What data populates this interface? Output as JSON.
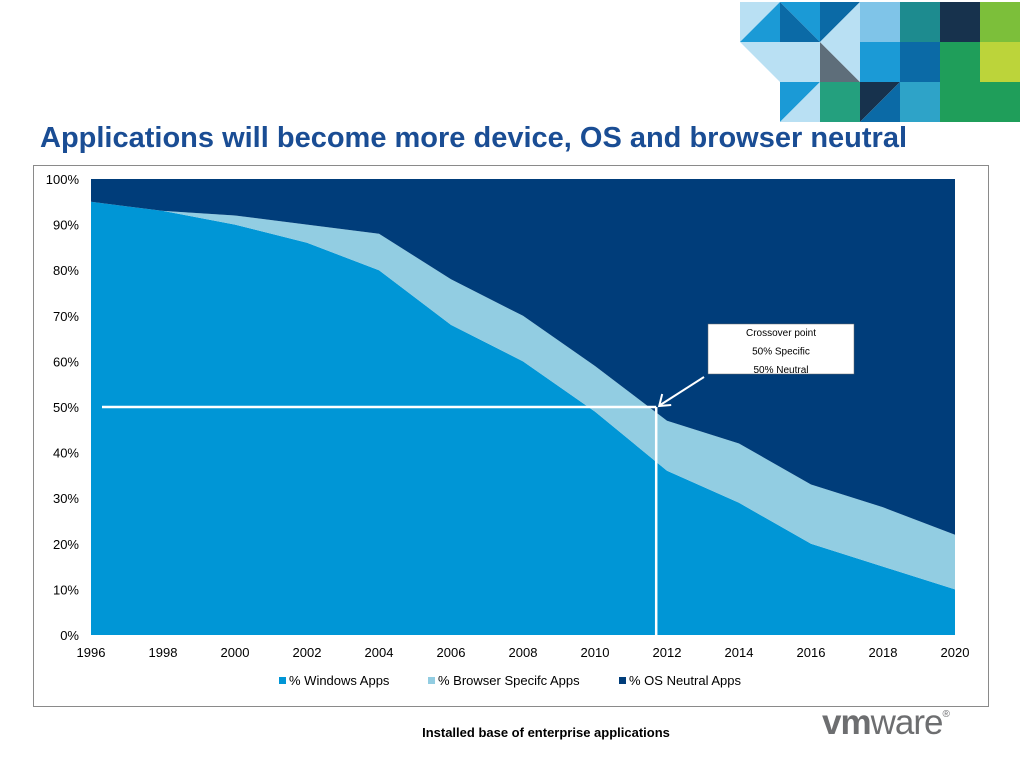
{
  "slide": {
    "title": "Applications will become more device, OS and browser neutral",
    "caption": "Installed base of enterprise applications"
  },
  "logo": {
    "text_bold": "vm",
    "text_rest": "ware",
    "mark": "®"
  },
  "annotation": {
    "lines": [
      "Crossover point",
      "50% Specific",
      "50% Neutral"
    ],
    "x": 2011.7,
    "y": 50
  },
  "colors": {
    "windows": "#0096d6",
    "browser": "#92cde2",
    "neutral": "#003d7a"
  },
  "chart_data": {
    "type": "area",
    "stacked": true,
    "percent": true,
    "x": [
      1996,
      1998,
      2000,
      2002,
      2004,
      2006,
      2008,
      2010,
      2012,
      2014,
      2016,
      2018,
      2020
    ],
    "series": [
      {
        "name": "% Windows Apps",
        "color": "#0096d6",
        "values": [
          95,
          93,
          90,
          86,
          80,
          68,
          60,
          49,
          36,
          29,
          20,
          15,
          10
        ]
      },
      {
        "name": "% Browser Specifc Apps",
        "color": "#92cde2",
        "values": [
          0,
          0,
          2,
          4,
          8,
          10,
          10,
          10,
          11,
          13,
          13,
          13,
          12
        ]
      },
      {
        "name": "% OS Neutral Apps",
        "color": "#003d7a",
        "values": [
          5,
          7,
          8,
          10,
          12,
          22,
          30,
          41,
          53,
          58,
          67,
          72,
          78
        ]
      }
    ],
    "xlim": [
      1996,
      2020
    ],
    "ylim": [
      0,
      100
    ],
    "y_ticks": [
      "0%",
      "10%",
      "20%",
      "30%",
      "40%",
      "50%",
      "60%",
      "70%",
      "80%",
      "90%",
      "100%"
    ],
    "x_ticks": [
      "1996",
      "1998",
      "2000",
      "2002",
      "2004",
      "2006",
      "2008",
      "2010",
      "2012",
      "2014",
      "2016",
      "2018",
      "2020"
    ],
    "legend_position": "bottom",
    "grid": false
  }
}
